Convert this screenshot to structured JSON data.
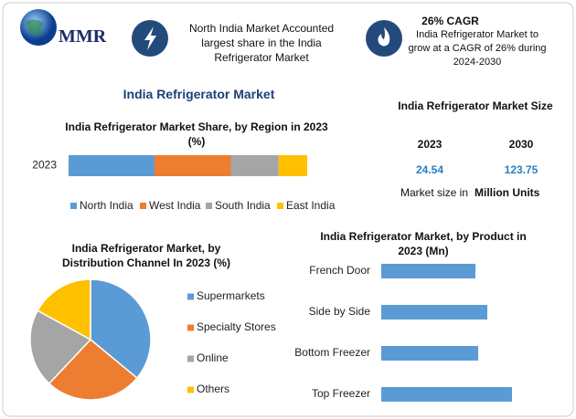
{
  "header": {
    "logo": "MMR",
    "fact1": "North India Market Accounted largest share in the India Refrigerator Market",
    "fact2_title": "26% CAGR",
    "fact2": "India Refrigerator Market to grow at a CAGR of 26% during 2024-2030"
  },
  "title": "India Refrigerator Market",
  "size_panel": {
    "title": "India Refrigerator Market Size",
    "years": [
      "2023",
      "2030"
    ],
    "values": [
      24.54,
      123.75
    ],
    "note": "Market size in",
    "unit": "Million Units"
  },
  "chart_data": [
    {
      "type": "stacked-bar",
      "title": "India Refrigerator Market Share, by Region in 2023 (%)",
      "categories": [
        "2023"
      ],
      "series": [
        {
          "name": "North India",
          "color": "#5b9bd5",
          "values": [
            36
          ]
        },
        {
          "name": "West India",
          "color": "#ed7d31",
          "values": [
            32
          ]
        },
        {
          "name": "South India",
          "color": "#a5a5a5",
          "values": [
            20
          ]
        },
        {
          "name": "East India",
          "color": "#ffc000",
          "values": [
            12
          ]
        }
      ]
    },
    {
      "type": "pie",
      "title": "India Refrigerator Market, by Distribution Channel In 2023 (%)",
      "categories": [
        "Supermarkets",
        "Specialty Stores",
        "Online",
        "Others"
      ],
      "values": [
        36,
        26,
        21,
        17
      ],
      "colors": [
        "#5b9bd5",
        "#ed7d31",
        "#a5a5a5",
        "#ffc000"
      ]
    },
    {
      "type": "hbar",
      "title": "India Refrigerator Market, by Product in 2023 (Mn)",
      "categories": [
        "French Door",
        "Side by Side",
        "Bottom Freezer",
        "Top Freezer"
      ],
      "values": [
        10.3,
        11.6,
        10.6,
        14.3
      ],
      "color": "#5b9bd5"
    }
  ]
}
